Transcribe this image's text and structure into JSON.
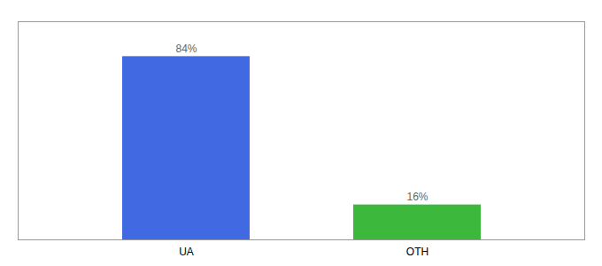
{
  "chart_data": {
    "type": "bar",
    "categories": [
      "UA",
      "OTH"
    ],
    "values": [
      84,
      16
    ],
    "value_labels": [
      "84%",
      "16%"
    ],
    "colors": [
      "#4169e1",
      "#3cb83c"
    ],
    "ylim": [
      0,
      100
    ],
    "yticks": [],
    "data_labels": true,
    "tick_labels": "x"
  }
}
